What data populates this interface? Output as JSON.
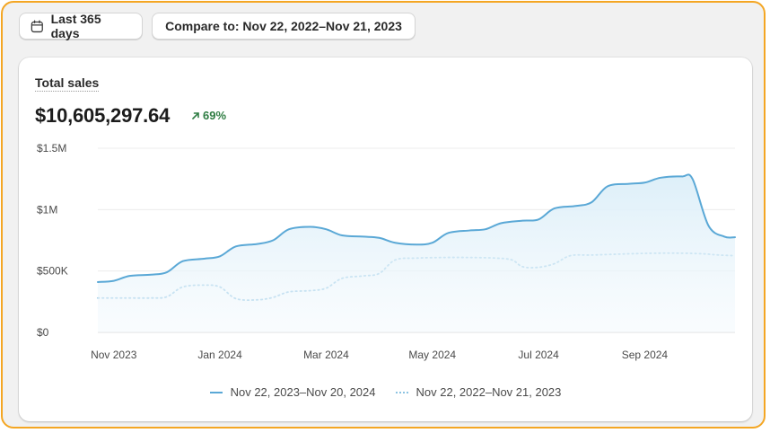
{
  "filters": {
    "date_range_label": "Last 365 days",
    "compare_label": "Compare to: Nov 22, 2022–Nov 21, 2023"
  },
  "card": {
    "title": "Total sales",
    "total_value": "$10,605,297.64",
    "change_value": "69%"
  },
  "colors": {
    "current": "#5aa8d6",
    "previous": "#8cc3e2",
    "positive": "#2f7d43",
    "accent_border": "#f4a623"
  },
  "icons": {
    "date": "calendar-icon",
    "change": "arrow-up-right-icon"
  },
  "chart_data": {
    "type": "line",
    "title": "Total sales",
    "ylim": [
      0,
      1500000
    ],
    "y_ticks": [
      {
        "value": 0,
        "label": "$0"
      },
      {
        "value": 500000,
        "label": "$500K"
      },
      {
        "value": 1000000,
        "label": "$1M"
      },
      {
        "value": 1500000,
        "label": "$1.5M"
      }
    ],
    "x_range": [
      0,
      12
    ],
    "x_ticks": [
      {
        "x": 0.3,
        "label": "Nov 2023"
      },
      {
        "x": 2.3,
        "label": "Jan 2024"
      },
      {
        "x": 4.3,
        "label": "Mar 2024"
      },
      {
        "x": 6.3,
        "label": "May 2024"
      },
      {
        "x": 8.3,
        "label": "Jul 2024"
      },
      {
        "x": 10.3,
        "label": "Sep 2024"
      }
    ],
    "series": [
      {
        "name": "Nov 22, 2023–Nov 20, 2024",
        "style": "solid",
        "filled": true,
        "points": [
          [
            0,
            410000
          ],
          [
            0.3,
            420000
          ],
          [
            0.6,
            460000
          ],
          [
            1.0,
            470000
          ],
          [
            1.3,
            490000
          ],
          [
            1.6,
            580000
          ],
          [
            2.0,
            600000
          ],
          [
            2.3,
            620000
          ],
          [
            2.6,
            700000
          ],
          [
            3.0,
            720000
          ],
          [
            3.3,
            750000
          ],
          [
            3.6,
            840000
          ],
          [
            4.0,
            860000
          ],
          [
            4.3,
            840000
          ],
          [
            4.6,
            790000
          ],
          [
            5.0,
            780000
          ],
          [
            5.3,
            770000
          ],
          [
            5.6,
            730000
          ],
          [
            6.0,
            715000
          ],
          [
            6.3,
            730000
          ],
          [
            6.6,
            810000
          ],
          [
            7.0,
            830000
          ],
          [
            7.3,
            840000
          ],
          [
            7.6,
            890000
          ],
          [
            8.0,
            910000
          ],
          [
            8.3,
            920000
          ],
          [
            8.6,
            1010000
          ],
          [
            9.0,
            1030000
          ],
          [
            9.3,
            1060000
          ],
          [
            9.6,
            1190000
          ],
          [
            10.0,
            1210000
          ],
          [
            10.3,
            1220000
          ],
          [
            10.6,
            1260000
          ],
          [
            11.0,
            1270000
          ],
          [
            11.2,
            1250000
          ],
          [
            11.5,
            870000
          ],
          [
            11.8,
            780000
          ],
          [
            12.0,
            775000
          ]
        ]
      },
      {
        "name": "Nov 22, 2022–Nov 21, 2023",
        "style": "dotted",
        "filled": false,
        "points": [
          [
            0,
            280000
          ],
          [
            0.5,
            280000
          ],
          [
            1.0,
            280000
          ],
          [
            1.3,
            290000
          ],
          [
            1.6,
            370000
          ],
          [
            2.0,
            385000
          ],
          [
            2.3,
            370000
          ],
          [
            2.6,
            275000
          ],
          [
            3.0,
            265000
          ],
          [
            3.3,
            285000
          ],
          [
            3.6,
            330000
          ],
          [
            4.0,
            340000
          ],
          [
            4.3,
            360000
          ],
          [
            4.6,
            440000
          ],
          [
            5.0,
            460000
          ],
          [
            5.3,
            480000
          ],
          [
            5.6,
            590000
          ],
          [
            6.0,
            605000
          ],
          [
            6.5,
            610000
          ],
          [
            7.0,
            610000
          ],
          [
            7.5,
            605000
          ],
          [
            7.8,
            590000
          ],
          [
            8.0,
            535000
          ],
          [
            8.3,
            530000
          ],
          [
            8.6,
            560000
          ],
          [
            8.9,
            625000
          ],
          [
            9.3,
            630000
          ],
          [
            10.0,
            640000
          ],
          [
            10.5,
            645000
          ],
          [
            11.0,
            645000
          ],
          [
            11.4,
            640000
          ],
          [
            11.7,
            630000
          ],
          [
            12.0,
            625000
          ]
        ]
      }
    ]
  }
}
